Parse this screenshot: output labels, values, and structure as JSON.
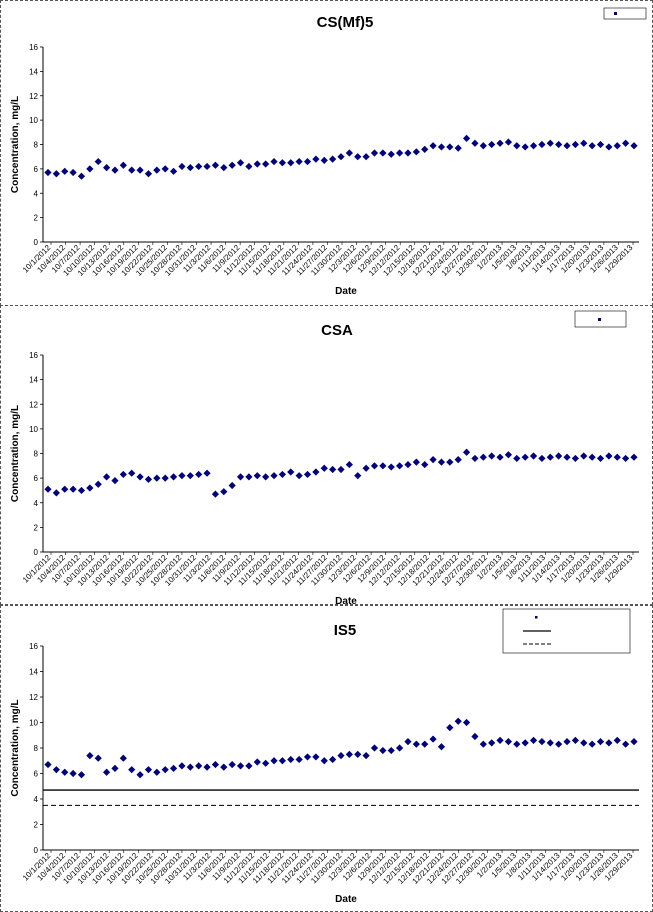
{
  "chart_data": [
    {
      "type": "scatter",
      "title": "CS(Mf)5",
      "xlabel": "Date",
      "ylabel": "Concentration, mg/L",
      "ylim": [
        0,
        16
      ],
      "yticks": [
        0,
        2,
        4,
        6,
        8,
        10,
        12,
        14,
        16
      ],
      "x_tick_labels": [
        "10/1/2012",
        "10/4/2012",
        "10/7/2012",
        "10/10/2012",
        "10/13/2012",
        "10/16/2012",
        "10/19/2012",
        "10/22/2012",
        "10/25/2012",
        "10/28/2012",
        "10/31/2012",
        "11/3/2012",
        "11/6/2012",
        "11/9/2012",
        "11/12/2012",
        "11/15/2012",
        "11/18/2012",
        "11/21/2012",
        "11/24/2012",
        "11/27/2012",
        "11/30/2012",
        "12/3/2012",
        "12/6/2012",
        "12/9/2012",
        "12/12/2012",
        "12/15/2012",
        "12/18/2012",
        "12/21/2012",
        "12/24/2012",
        "12/27/2012",
        "12/30/2012",
        "1/2/2013",
        "1/5/2013",
        "1/8/2013",
        "1/11/2013",
        "1/14/2013",
        "1/17/2013",
        "1/20/2013",
        "1/23/2013",
        "1/26/2013",
        "1/29/2013"
      ],
      "grid": false,
      "legend_position": "top-right",
      "marker_color": "#000080",
      "series": [
        {
          "x": [
            0,
            1,
            2,
            3,
            4,
            5,
            6,
            7,
            8,
            9,
            10,
            11,
            12,
            13,
            14,
            15,
            16,
            17,
            18,
            19,
            20,
            21,
            22,
            23,
            24,
            25,
            26,
            27,
            28,
            29,
            30,
            31,
            32,
            33,
            34,
            35,
            36,
            37,
            38,
            39,
            40,
            41,
            42,
            43,
            44,
            45,
            46,
            47,
            48,
            49,
            50,
            51,
            52,
            53,
            54,
            55,
            56,
            57,
            58,
            59,
            60,
            61,
            62,
            63,
            64,
            65,
            66,
            67,
            68,
            69,
            70
          ],
          "y": [
            5.7,
            5.6,
            5.8,
            5.7,
            5.4,
            6.0,
            6.6,
            6.1,
            5.9,
            6.3,
            5.9,
            5.9,
            5.6,
            5.9,
            6.0,
            5.8,
            6.2,
            6.1,
            6.2,
            6.2,
            6.3,
            6.1,
            6.3,
            6.5,
            6.2,
            6.4,
            6.4,
            6.6,
            6.5,
            6.5,
            6.6,
            6.6,
            6.8,
            6.7,
            6.8,
            7.0,
            7.3,
            7.0,
            7.0,
            7.3,
            7.3,
            7.2,
            7.3,
            7.3,
            7.4,
            7.6,
            7.9,
            7.8,
            7.8,
            7.7,
            8.5,
            8.1,
            7.9,
            8.0,
            8.1,
            8.2,
            7.9,
            7.8,
            7.9,
            8.0,
            8.1,
            8.0,
            7.9,
            8.0,
            8.1,
            7.9,
            8.0,
            7.8,
            7.9,
            8.1,
            7.9
          ]
        }
      ]
    },
    {
      "type": "scatter",
      "title": "CSA",
      "xlabel": "Date",
      "ylabel": "Concentration, mg/L",
      "ylim": [
        0,
        16
      ],
      "yticks": [
        0,
        2,
        4,
        6,
        8,
        10,
        12,
        14,
        16
      ],
      "x_tick_labels": [
        "10/1/2012",
        "10/4/2012",
        "10/7/2012",
        "10/10/2012",
        "10/13/2012",
        "10/16/2012",
        "10/19/2012",
        "10/22/2012",
        "10/25/2012",
        "10/28/2012",
        "10/31/2012",
        "11/3/2012",
        "11/6/2012",
        "11/9/2012",
        "11/12/2012",
        "11/15/2012",
        "11/18/2012",
        "11/21/2012",
        "11/24/2012",
        "11/27/2012",
        "11/30/2012",
        "12/3/2012",
        "12/6/2012",
        "12/9/2012",
        "12/12/2012",
        "12/15/2012",
        "12/18/2012",
        "12/21/2012",
        "12/24/2012",
        "12/27/2012",
        "12/30/2012",
        "1/2/2013",
        "1/5/2013",
        "1/8/2013",
        "1/11/2013",
        "1/14/2013",
        "1/17/2013",
        "1/20/2013",
        "1/23/2013",
        "1/26/2013",
        "1/29/2013"
      ],
      "grid": false,
      "legend_position": "top-right",
      "marker_color": "#000080",
      "series": [
        {
          "x": [
            0,
            1,
            2,
            3,
            4,
            5,
            6,
            7,
            8,
            9,
            10,
            11,
            12,
            13,
            14,
            15,
            16,
            17,
            18,
            19,
            20,
            21,
            22,
            23,
            24,
            25,
            26,
            27,
            28,
            29,
            30,
            31,
            32,
            33,
            34,
            35,
            36,
            37,
            38,
            39,
            40,
            41,
            42,
            43,
            44,
            45,
            46,
            47,
            48,
            49,
            50,
            51,
            52,
            53,
            54,
            55,
            56,
            57,
            58,
            59,
            60,
            61,
            62,
            63,
            64,
            65,
            66,
            67,
            68,
            69,
            70
          ],
          "y": [
            5.1,
            4.8,
            5.1,
            5.1,
            5.0,
            5.2,
            5.5,
            6.1,
            5.8,
            6.3,
            6.4,
            6.1,
            5.9,
            6.0,
            6.0,
            6.1,
            6.2,
            6.2,
            6.3,
            6.4,
            4.7,
            4.9,
            5.4,
            6.1,
            6.1,
            6.2,
            6.1,
            6.2,
            6.3,
            6.5,
            6.2,
            6.3,
            6.5,
            6.8,
            6.7,
            6.7,
            7.1,
            6.2,
            6.8,
            7.0,
            7.0,
            6.9,
            7.0,
            7.1,
            7.3,
            7.1,
            7.5,
            7.3,
            7.3,
            7.5,
            8.1,
            7.6,
            7.7,
            7.8,
            7.7,
            7.9,
            7.6,
            7.7,
            7.8,
            7.6,
            7.7,
            7.8,
            7.7,
            7.6,
            7.8,
            7.7,
            7.6,
            7.8,
            7.7,
            7.6,
            7.7
          ]
        }
      ]
    },
    {
      "type": "scatter",
      "title": "IS5",
      "xlabel": "Date",
      "ylabel": "Concentration, mg/L",
      "ylim": [
        0,
        16
      ],
      "yticks": [
        0,
        2,
        4,
        6,
        8,
        10,
        12,
        14,
        16
      ],
      "x_tick_labels": [
        "10/1/2012",
        "10/4/2012",
        "10/7/2012",
        "10/10/2012",
        "10/13/2012",
        "10/16/2012",
        "10/19/2012",
        "10/22/2012",
        "10/25/2012",
        "10/28/2012",
        "10/31/2012",
        "11/3/2012",
        "11/6/2012",
        "11/9/2012",
        "11/12/2012",
        "11/15/2012",
        "11/18/2012",
        "11/21/2012",
        "11/24/2012",
        "11/27/2012",
        "11/30/2012",
        "12/3/2012",
        "12/6/2012",
        "12/9/2012",
        "12/12/2012",
        "12/15/2012",
        "12/18/2012",
        "12/21/2012",
        "12/24/2012",
        "12/27/2012",
        "12/30/2012",
        "1/2/2013",
        "1/5/2013",
        "1/8/2013",
        "1/11/2013",
        "1/14/2013",
        "1/17/2013",
        "1/20/2013",
        "1/23/2013",
        "1/26/2013",
        "1/29/2013"
      ],
      "grid": false,
      "legend_position": "top-right",
      "marker_color": "#000080",
      "series": [
        {
          "x": [
            0,
            1,
            2,
            3,
            4,
            5,
            6,
            7,
            8,
            9,
            10,
            11,
            12,
            13,
            14,
            15,
            16,
            17,
            18,
            19,
            20,
            21,
            22,
            23,
            24,
            25,
            26,
            27,
            28,
            29,
            30,
            31,
            32,
            33,
            34,
            35,
            36,
            37,
            38,
            39,
            40,
            41,
            42,
            43,
            44,
            45,
            46,
            47,
            48,
            49,
            50,
            51,
            52,
            53,
            54,
            55,
            56,
            57,
            58,
            59,
            60,
            61,
            62,
            63,
            64,
            65,
            66,
            67,
            68,
            69,
            70
          ],
          "y": [
            6.7,
            6.3,
            6.1,
            6.0,
            5.9,
            7.4,
            7.2,
            6.1,
            6.4,
            7.2,
            6.3,
            5.9,
            6.3,
            6.1,
            6.3,
            6.4,
            6.6,
            6.5,
            6.6,
            6.5,
            6.7,
            6.5,
            6.7,
            6.6,
            6.6,
            6.9,
            6.8,
            7.0,
            7.0,
            7.1,
            7.1,
            7.3,
            7.3,
            7.0,
            7.1,
            7.4,
            7.5,
            7.5,
            7.4,
            8.0,
            7.8,
            7.8,
            8.0,
            8.5,
            8.3,
            8.3,
            8.7,
            8.1,
            9.6,
            10.1,
            10.0,
            8.9,
            8.3,
            8.4,
            8.6,
            8.5,
            8.3,
            8.4,
            8.6,
            8.5,
            8.4,
            8.3,
            8.5,
            8.6,
            8.4,
            8.3,
            8.5,
            8.4,
            8.6,
            8.3,
            8.5
          ]
        }
      ],
      "reference_lines": [
        {
          "y": 4.7,
          "style": "solid"
        },
        {
          "y": 3.5,
          "style": "dashed"
        }
      ]
    }
  ]
}
